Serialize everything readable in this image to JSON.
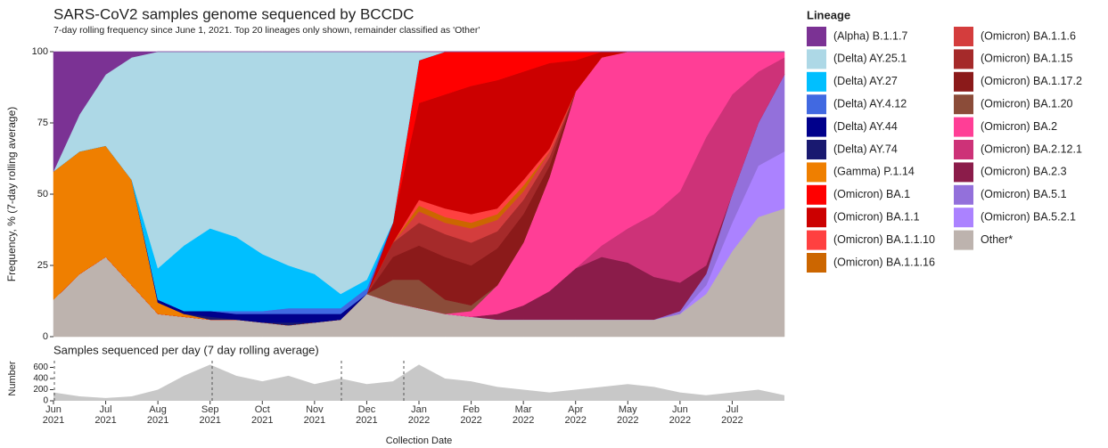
{
  "chart_data": [
    {
      "type": "area",
      "stacked": true,
      "title": "SARS-CoV2 samples genome sequenced by BCCDC",
      "subtitle": "7-day rolling frequency since June 1, 2021.  Top 20 lineages only shown, remainder classified as 'Other'",
      "y_label": "Frequency, % (7-day rolling average)",
      "legend_title": "Lineage",
      "ylim": [
        0,
        100
      ],
      "yticks": [
        0,
        25,
        50,
        75,
        100
      ],
      "series": [
        {
          "name": "(Alpha) B.1.1.7",
          "color": "#7b3294",
          "values": [
            42,
            22,
            8,
            2,
            0,
            0,
            0,
            0,
            0,
            0,
            0,
            0,
            0,
            0,
            0,
            0,
            0,
            0,
            0,
            0,
            0,
            0,
            0,
            0,
            0,
            0,
            0,
            0,
            0
          ]
        },
        {
          "name": "(Delta) AY.25.1",
          "color": "#add8e6",
          "values": [
            0,
            13,
            25,
            43,
            76,
            68,
            62,
            65,
            71,
            75,
            78,
            85,
            80,
            60,
            3,
            0,
            0,
            0,
            0,
            0,
            0,
            0,
            0,
            0,
            0,
            0,
            0,
            0,
            0
          ]
        },
        {
          "name": "(Delta) AY.27",
          "color": "#00bfff",
          "values": [
            0,
            0,
            0,
            0,
            11,
            23,
            29,
            26,
            20,
            15,
            12,
            5,
            3,
            0,
            0,
            0,
            0,
            0,
            0,
            0,
            0,
            0,
            0,
            0,
            0,
            0,
            0,
            0,
            0
          ]
        },
        {
          "name": "(Delta) AY.4.12",
          "color": "#4169e1",
          "values": [
            0,
            0,
            0,
            0,
            0,
            0,
            0,
            1,
            1,
            2,
            2,
            2,
            2,
            0,
            0,
            0,
            0,
            0,
            0,
            0,
            0,
            0,
            0,
            0,
            0,
            0,
            0,
            0,
            0
          ]
        },
        {
          "name": "(Delta) AY.44",
          "color": "#00008b",
          "values": [
            0,
            0,
            0,
            0,
            1,
            1,
            2,
            2,
            3,
            3,
            3,
            2,
            0,
            0,
            0,
            0,
            0,
            0,
            0,
            0,
            0,
            0,
            0,
            0,
            0,
            0,
            0,
            0,
            0
          ]
        },
        {
          "name": "(Delta) AY.74",
          "color": "#191970",
          "values": [
            0,
            0,
            0,
            0,
            0,
            0,
            1,
            0,
            0,
            1,
            0,
            0,
            0,
            0,
            0,
            0,
            0,
            0,
            0,
            0,
            0,
            0,
            0,
            0,
            0,
            0,
            0,
            0,
            0
          ]
        },
        {
          "name": "(Gamma) P.1.14",
          "color": "#ef7f00",
          "values": [
            45,
            43,
            39,
            37,
            4,
            1,
            0,
            0,
            0,
            0,
            0,
            0,
            0,
            0,
            0,
            0,
            0,
            0,
            0,
            0,
            0,
            0,
            0,
            0,
            0,
            0,
            0,
            0,
            0
          ]
        },
        {
          "name": "(Omicron) BA.1",
          "color": "#ff0000",
          "values": [
            0,
            0,
            0,
            0,
            0,
            0,
            0,
            0,
            0,
            0,
            0,
            0,
            0,
            0,
            15,
            15,
            12,
            10,
            7,
            4,
            3,
            0,
            0,
            0,
            0,
            0,
            0,
            0,
            0
          ]
        },
        {
          "name": "(Omicron) BA.1.1",
          "color": "#cc0000",
          "values": [
            0,
            0,
            0,
            0,
            0,
            0,
            0,
            0,
            0,
            0,
            0,
            0,
            0,
            7,
            34,
            40,
            45,
            45,
            38,
            30,
            11,
            2,
            0,
            0,
            0,
            0,
            0,
            0,
            0
          ]
        },
        {
          "name": "(Omicron) BA.1.1.10",
          "color": "#ff4040",
          "values": [
            0,
            0,
            0,
            0,
            0,
            0,
            0,
            0,
            0,
            0,
            0,
            0,
            0,
            0,
            2,
            3,
            3,
            2,
            2,
            1,
            0,
            0,
            0,
            0,
            0,
            0,
            0,
            0,
            0
          ]
        },
        {
          "name": "(Omicron) BA.1.1.16",
          "color": "#cc6600",
          "values": [
            0,
            0,
            0,
            0,
            0,
            0,
            0,
            0,
            0,
            0,
            0,
            0,
            0,
            0,
            2,
            2,
            2,
            2,
            2,
            0,
            0,
            0,
            0,
            0,
            0,
            0,
            0,
            0,
            0
          ]
        },
        {
          "name": "(Omicron) BA.1.1.6",
          "color": "#d43d3d",
          "values": [
            0,
            0,
            0,
            0,
            0,
            0,
            0,
            0,
            0,
            0,
            0,
            0,
            0,
            0,
            4,
            4,
            5,
            4,
            3,
            2,
            0,
            0,
            0,
            0,
            0,
            0,
            0,
            0,
            0
          ]
        },
        {
          "name": "(Omicron) BA.1.15",
          "color": "#a52a2a",
          "values": [
            0,
            0,
            0,
            0,
            0,
            0,
            0,
            0,
            0,
            0,
            0,
            0,
            0,
            5,
            8,
            8,
            8,
            6,
            5,
            3,
            0,
            0,
            0,
            0,
            0,
            0,
            0,
            0,
            0
          ]
        },
        {
          "name": "(Omicron) BA.1.17.2",
          "color": "#8b1a1a",
          "values": [
            0,
            0,
            0,
            0,
            0,
            0,
            0,
            0,
            0,
            0,
            0,
            0,
            0,
            8,
            12,
            15,
            14,
            13,
            10,
            4,
            0,
            0,
            0,
            0,
            0,
            0,
            0,
            0,
            0
          ]
        },
        {
          "name": "(Omicron) BA.1.20",
          "color": "#8b4c39",
          "values": [
            0,
            0,
            0,
            0,
            0,
            0,
            0,
            0,
            0,
            0,
            0,
            0,
            0,
            8,
            10,
            5,
            2,
            0,
            0,
            0,
            0,
            0,
            0,
            0,
            0,
            0,
            0,
            0,
            0
          ]
        },
        {
          "name": "(Omicron) BA.2",
          "color": "#ff3e96",
          "values": [
            0,
            0,
            0,
            0,
            0,
            0,
            0,
            0,
            0,
            0,
            0,
            0,
            0,
            0,
            0,
            0,
            2,
            10,
            22,
            40,
            62,
            66,
            62,
            57,
            49,
            30,
            15,
            7,
            2
          ]
        },
        {
          "name": "(Omicron) BA.2.12.1",
          "color": "#cd3278",
          "values": [
            0,
            0,
            0,
            0,
            0,
            0,
            0,
            0,
            0,
            0,
            0,
            0,
            0,
            0,
            0,
            0,
            0,
            0,
            0,
            0,
            0,
            4,
            12,
            22,
            32,
            45,
            35,
            18,
            6
          ]
        },
        {
          "name": "(Omicron) BA.2.3",
          "color": "#8b1c4a",
          "values": [
            0,
            0,
            0,
            0,
            0,
            0,
            0,
            0,
            0,
            0,
            0,
            0,
            0,
            0,
            0,
            0,
            0,
            2,
            5,
            10,
            18,
            22,
            20,
            15,
            10,
            3,
            0,
            0,
            0
          ]
        },
        {
          "name": "(Omicron) BA.5.1",
          "color": "#9370db",
          "values": [
            0,
            0,
            0,
            0,
            0,
            0,
            0,
            0,
            0,
            0,
            0,
            0,
            0,
            0,
            0,
            0,
            0,
            0,
            0,
            0,
            0,
            0,
            0,
            0,
            1,
            4,
            10,
            15,
            27
          ]
        },
        {
          "name": "(Omicron) BA.5.2.1",
          "color": "#ab82ff",
          "values": [
            0,
            0,
            0,
            0,
            0,
            0,
            0,
            0,
            0,
            0,
            0,
            0,
            0,
            0,
            0,
            0,
            0,
            0,
            0,
            0,
            0,
            0,
            0,
            0,
            0,
            3,
            10,
            18,
            20
          ]
        },
        {
          "name": "Other*",
          "color": "#bdb3ae",
          "values": [
            13,
            22,
            28,
            18,
            8,
            7,
            6,
            6,
            5,
            4,
            5,
            6,
            15,
            12,
            10,
            8,
            7,
            6,
            6,
            6,
            6,
            6,
            6,
            6,
            8,
            15,
            30,
            42,
            45
          ]
        }
      ]
    },
    {
      "type": "area",
      "title": "Samples sequenced per day (7 day rolling average)",
      "y_label": "Number",
      "x_label": "Collection Date",
      "color": "#c8c8c8",
      "categories": [
        "Jun 2021",
        null,
        "Jul 2021",
        null,
        "Aug 2021",
        null,
        "Sep 2021",
        null,
        "Oct 2021",
        null,
        "Nov 2021",
        null,
        "Dec 2021",
        null,
        "Jan 2022",
        null,
        "Feb 2022",
        null,
        "Mar 2022",
        null,
        "Apr 2022",
        null,
        "May 2022",
        null,
        "Jun 2022",
        null,
        "Jul 2022",
        null,
        null
      ],
      "values": [
        150,
        80,
        50,
        80,
        200,
        450,
        650,
        450,
        350,
        450,
        300,
        400,
        300,
        350,
        650,
        400,
        350,
        250,
        200,
        150,
        200,
        250,
        300,
        250,
        150,
        100,
        150,
        200,
        100
      ],
      "ylim": [
        0,
        800
      ],
      "yticks": [
        0,
        200,
        400,
        600
      ]
    }
  ]
}
